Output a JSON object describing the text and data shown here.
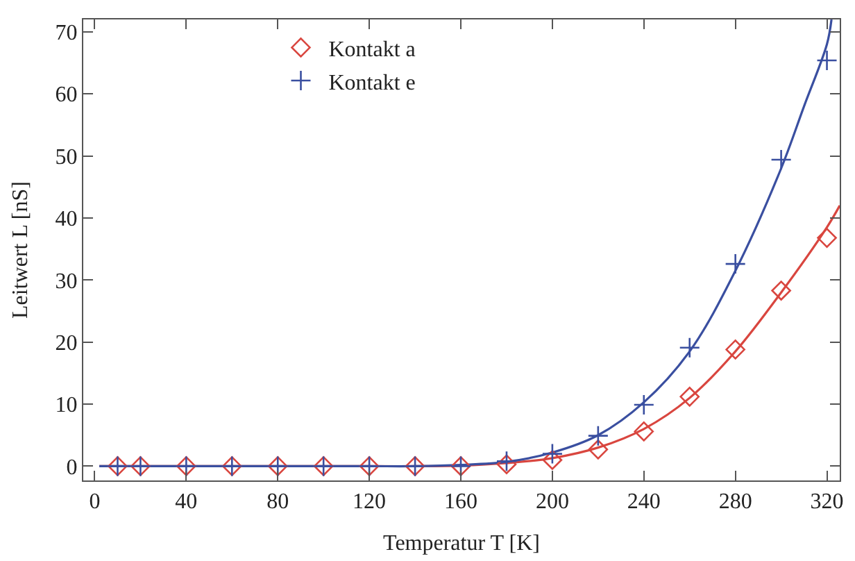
{
  "chart_data": {
    "type": "scatter",
    "xlabel": "Temperatur T [K]",
    "ylabel": "Leitwert L [nS]",
    "xlim": [
      -5,
      325.6
    ],
    "xticks": [
      0,
      40,
      80,
      120,
      160,
      200,
      240,
      280,
      320
    ],
    "ylim": [
      -2.3,
      72
    ],
    "yticks": [
      0,
      10,
      20,
      30,
      40,
      50,
      60,
      70
    ],
    "legend": "top",
    "series": [
      {
        "type": "line",
        "color": "#d9463f",
        "marker": "none",
        "line_style": "solid",
        "x": [
          2,
          40,
          80,
          120,
          140,
          160,
          180,
          200,
          220,
          240,
          260,
          280,
          300,
          320,
          325.6
        ],
        "values": [
          0,
          0,
          0,
          0,
          0,
          0.1,
          0.5,
          1.3,
          3,
          6,
          11,
          18.5,
          28,
          38.5,
          42
        ]
      },
      {
        "type": "line",
        "color": "#3a4fa0",
        "marker": "none",
        "line_style": "solid",
        "x": [
          2,
          40,
          80,
          120,
          140,
          160,
          180,
          200,
          220,
          240,
          260,
          280,
          300,
          310,
          320,
          322
        ],
        "values": [
          0,
          0,
          0,
          0,
          0,
          0.2,
          0.7,
          2.2,
          5,
          10.3,
          18.5,
          31.5,
          48,
          58,
          68,
          72
        ]
      },
      {
        "name": "Kontakt a",
        "color": "#d9463f",
        "marker": "diamond",
        "x": [
          10,
          20,
          40,
          60,
          80,
          100,
          120,
          140,
          160,
          180,
          200,
          220,
          240,
          260,
          280,
          300,
          320
        ],
        "values": [
          0,
          0,
          0,
          0,
          0,
          0,
          0,
          0,
          0,
          0.3,
          1,
          2.7,
          5.6,
          11.2,
          18.8,
          28.3,
          36.8
        ]
      },
      {
        "name": "Kontakt e",
        "color": "#3a4fa0",
        "marker": "cross",
        "x": [
          10,
          20,
          40,
          60,
          80,
          100,
          120,
          140,
          160,
          180,
          200,
          220,
          240,
          260,
          280,
          300,
          320
        ],
        "values": [
          0,
          0,
          0,
          0,
          0,
          0,
          0,
          0,
          0,
          0.8,
          2,
          4.9,
          9.9,
          19.1,
          32.6,
          49.4,
          65.4
        ]
      }
    ]
  }
}
